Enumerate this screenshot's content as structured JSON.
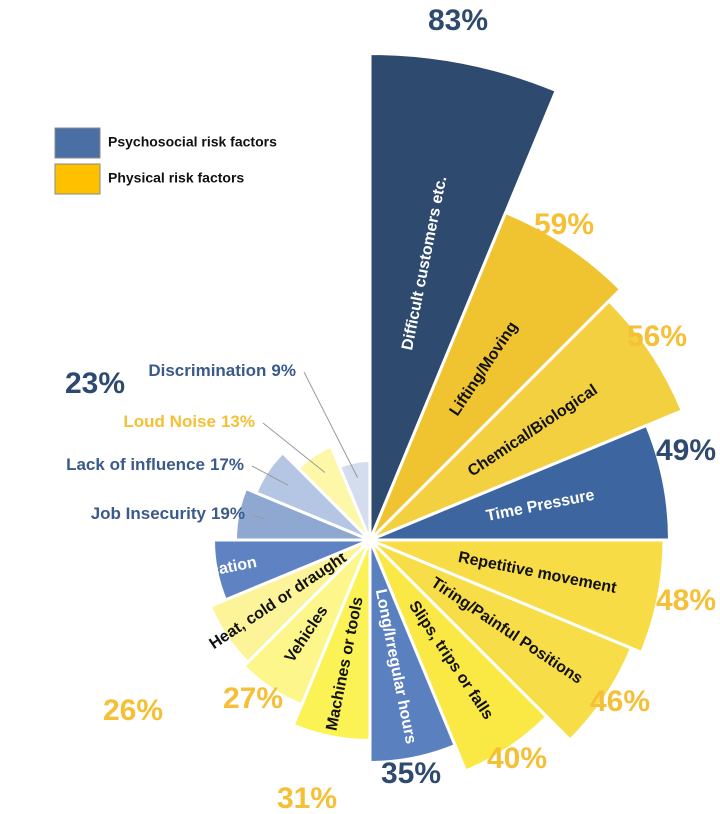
{
  "chart_data": {
    "type": "polar-area",
    "legend": [
      {
        "name": "Psychosocial risk factors",
        "color": "#4a6fa5"
      },
      {
        "name": "Physical risk factors",
        "color": "#ffc000"
      }
    ],
    "categories": [
      "Difficult customers etc.",
      "Lifting/Moving",
      "Chemical/Biological",
      "Time Pressure",
      "Repetitive movement",
      "Tiring/Painful Positions",
      "Slips, trips or falls",
      "Long/Irregular hours",
      "Machines or tools",
      "Vehicles",
      "Heat, cold or draught",
      "Poor Communication",
      "Job Insecurity",
      "Lack of influence",
      "Loud Noise",
      "Discrimination"
    ],
    "values": [
      83,
      59,
      56,
      49,
      48,
      46,
      40,
      35,
      31,
      27,
      26,
      23,
      19,
      17,
      13,
      9
    ],
    "value_labels": [
      "83%",
      "59%",
      "56%",
      "49%",
      "48%",
      "46%",
      "40%",
      "35%",
      "31%",
      "27%",
      "26%",
      "23%",
      "19%",
      "17%",
      "13%",
      "9%"
    ],
    "groups": [
      0,
      1,
      1,
      0,
      1,
      1,
      1,
      0,
      1,
      1,
      1,
      0,
      0,
      0,
      1,
      0
    ],
    "colors": [
      "#2e4a6e",
      "#f0c330",
      "#f3d040",
      "#3d65a0",
      "#f8dc45",
      "#f7de48",
      "#fae845",
      "#5a80c0",
      "#fbf255",
      "#fdf68a",
      "#fdf49a",
      "#5f82c2",
      "#8ea8d2",
      "#b4c6e4",
      "#fdf7a8",
      "#d3dded"
    ]
  }
}
